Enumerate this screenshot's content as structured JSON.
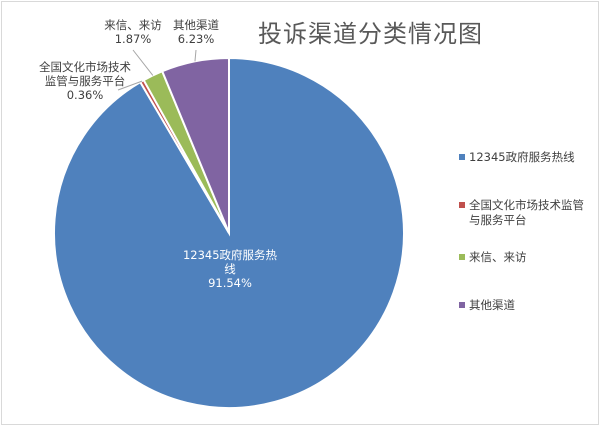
{
  "chart_data": {
    "type": "pie",
    "title": "投诉渠道分类情况图",
    "start_angle": "12 o'clock, clockwise",
    "legend_position": "right",
    "slices": [
      {
        "label": "12345政府服务热线",
        "value": 91.54,
        "value_label": "91.54%",
        "color": "#4f81bd",
        "legend_lines": [
          "12345政府服务热线"
        ],
        "label_lines": [
          "12345政府服务热",
          "线",
          "91.54%"
        ]
      },
      {
        "label": "全国文化市场技术监管与服务平台",
        "value": 0.36,
        "value_label": "0.36%",
        "color": "#c0504d",
        "legend_lines": [
          "全国文化市场技术监管",
          "与服务平台"
        ],
        "label_lines": [
          "全国文化市场技术",
          "监管与服务平台",
          "0.36%"
        ]
      },
      {
        "label": "来信、来访",
        "value": 1.87,
        "value_label": "1.87%",
        "color": "#9bbb59",
        "legend_lines": [
          "来信、来访"
        ],
        "label_lines": [
          "来信、来访",
          "1.87%"
        ]
      },
      {
        "label": "其他渠道",
        "value": 6.23,
        "value_label": "6.23%",
        "color": "#8064a2",
        "legend_lines": [
          "其他渠道"
        ],
        "label_lines": [
          "其他渠道",
          "6.23%"
        ]
      }
    ]
  }
}
